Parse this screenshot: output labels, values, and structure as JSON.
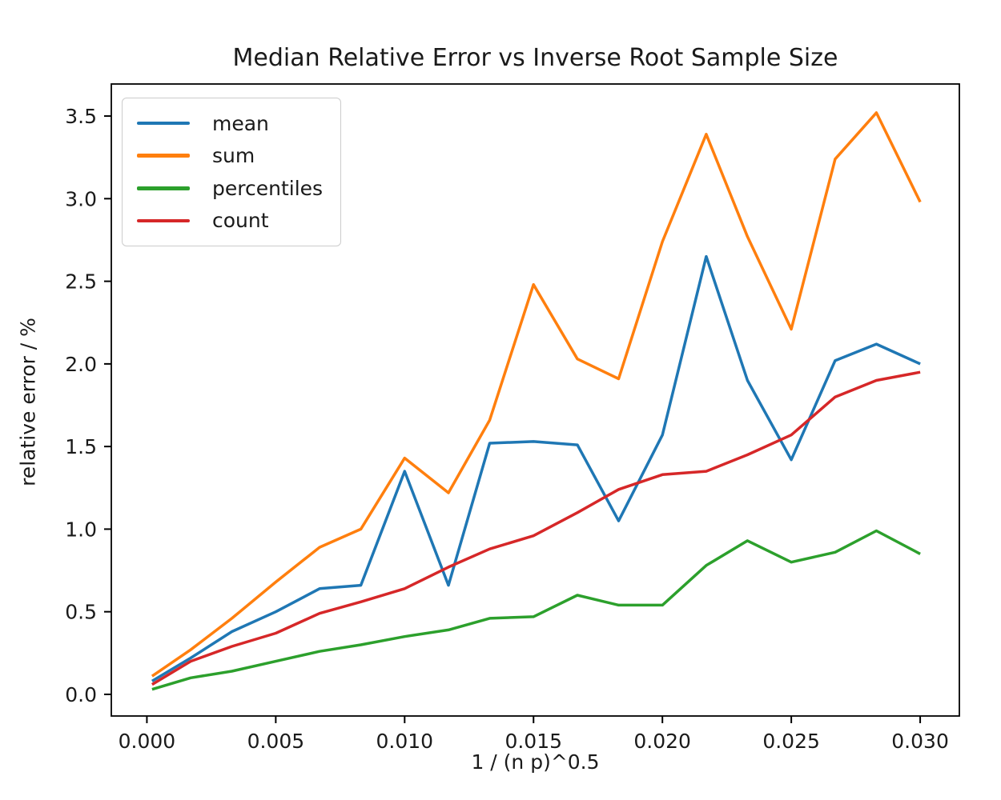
{
  "chart_data": {
    "type": "line",
    "title": "Median Relative Error vs Inverse Root Sample Size",
    "xlabel": "1 / (n p)^0.5",
    "ylabel": "relative error / %",
    "grid": false,
    "legend_position": "upper left",
    "xlim": [
      -0.00138,
      0.03152
    ],
    "ylim": [
      -0.131,
      3.694
    ],
    "xticks": {
      "values": [
        0.0,
        0.005,
        0.01,
        0.015,
        0.02,
        0.025,
        0.03
      ],
      "labels": [
        "0.000",
        "0.005",
        "0.010",
        "0.015",
        "0.020",
        "0.025",
        "0.030"
      ]
    },
    "yticks": {
      "values": [
        0.0,
        0.5,
        1.0,
        1.5,
        2.0,
        2.5,
        3.0,
        3.5
      ],
      "labels": [
        "0.0",
        "0.5",
        "1.0",
        "1.5",
        "2.0",
        "2.5",
        "3.0",
        "3.5"
      ]
    },
    "x": [
      0.0002,
      0.0017,
      0.0033,
      0.005,
      0.0067,
      0.0083,
      0.01,
      0.0117,
      0.0133,
      0.015,
      0.0167,
      0.0183,
      0.02,
      0.0217,
      0.0233,
      0.025,
      0.0267,
      0.0283,
      0.03
    ],
    "series": [
      {
        "name": "mean",
        "color": "#1f77b4",
        "values": [
          0.08,
          0.22,
          0.38,
          0.5,
          0.64,
          0.66,
          1.35,
          0.66,
          1.52,
          1.53,
          1.51,
          1.05,
          1.57,
          2.65,
          1.9,
          1.42,
          2.02,
          2.12,
          2.0
        ]
      },
      {
        "name": "sum",
        "color": "#ff7f0e",
        "values": [
          0.11,
          0.27,
          0.46,
          0.68,
          0.89,
          1.0,
          1.43,
          1.22,
          1.66,
          2.48,
          2.03,
          1.91,
          2.74,
          3.39,
          2.77,
          2.21,
          3.24,
          3.52,
          2.98
        ]
      },
      {
        "name": "percentiles",
        "color": "#2ca02c",
        "values": [
          0.03,
          0.1,
          0.14,
          0.2,
          0.26,
          0.3,
          0.35,
          0.39,
          0.46,
          0.47,
          0.6,
          0.54,
          0.54,
          0.78,
          0.93,
          0.8,
          0.86,
          0.99,
          0.85
        ]
      },
      {
        "name": "count",
        "color": "#d62728",
        "values": [
          0.06,
          0.2,
          0.29,
          0.37,
          0.49,
          0.56,
          0.64,
          0.77,
          0.88,
          0.96,
          1.1,
          1.24,
          1.33,
          1.35,
          1.45,
          1.57,
          1.8,
          1.9,
          1.95
        ]
      }
    ]
  }
}
